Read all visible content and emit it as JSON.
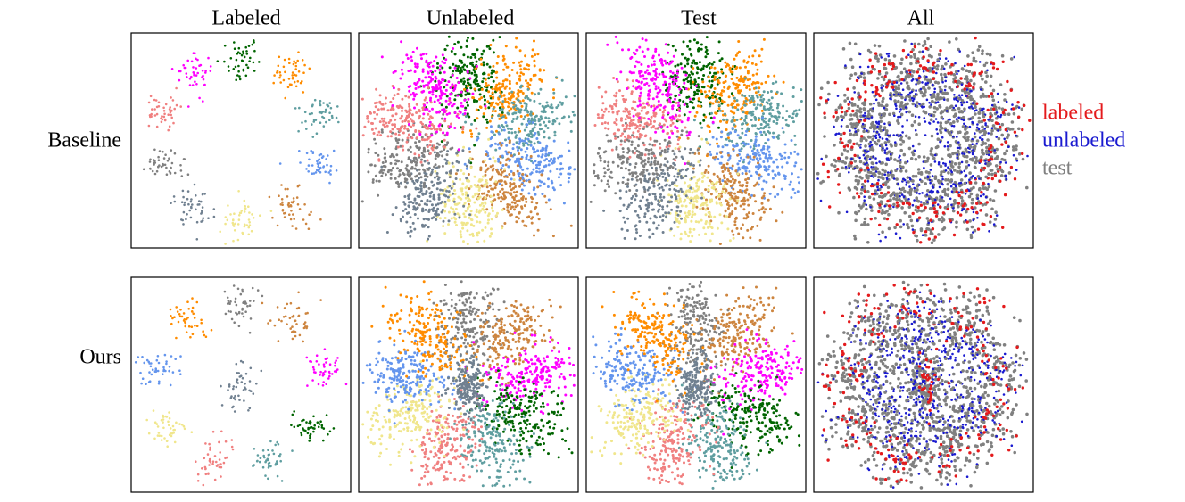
{
  "columns": [
    "Labeled",
    "Unlabeled",
    "Test",
    "All"
  ],
  "rows": [
    "Baseline",
    "Ours"
  ],
  "legend": [
    {
      "label": "labeled",
      "color": "#e41a1c"
    },
    {
      "label": "unlabeled",
      "color": "#1a1ad0"
    },
    {
      "label": "test",
      "color": "#808080"
    }
  ]
}
